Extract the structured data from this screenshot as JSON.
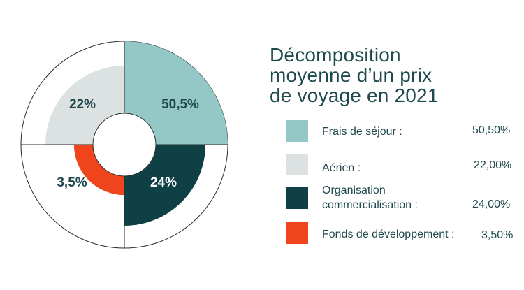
{
  "title_lines": [
    "Décomposition",
    "moyenne d’un prix",
    "de voyage en 2021"
  ],
  "colors": {
    "frais": "#93c8c6",
    "aerien": "#dce2e1",
    "organisation": "#0f4046",
    "fonds": "#f0441c",
    "text": "#1f4a4d",
    "outline": "#2b2b2b"
  },
  "legend": [
    {
      "label": "Frais de séjour :",
      "value": "50,50%"
    },
    {
      "label": "Aérien :",
      "value": "22,00%"
    },
    {
      "label_lines": [
        "Organisation",
        "commercialisation :"
      ],
      "value": "24,00%"
    },
    {
      "label": "Fonds de développement :",
      "value": "3,50%"
    }
  ],
  "chart_data": {
    "type": "pie",
    "title": "Décomposition moyenne d’un prix de voyage en 2021",
    "categories": [
      "Frais de séjour",
      "Aérien",
      "Organisation commercialisation",
      "Fonds de développement"
    ],
    "values": [
      50.5,
      22.0,
      24.0,
      3.5
    ],
    "data_labels": [
      "50,5%",
      "22%",
      "24%",
      "3,5%"
    ],
    "legend_position": "right"
  }
}
